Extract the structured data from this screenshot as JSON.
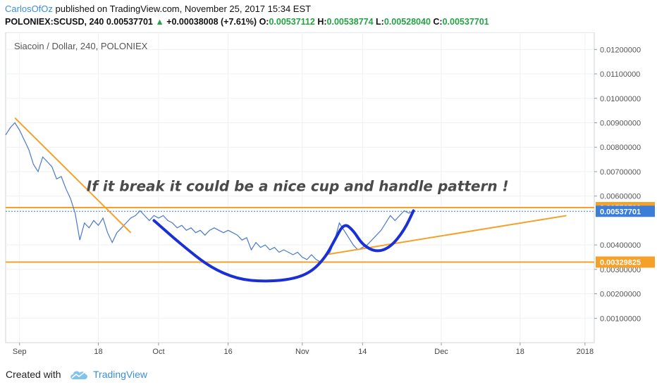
{
  "header": {
    "author": "CarlosOfOz",
    "published_text": "published on TradingView.com, November 25, 2017 15:34 EST",
    "symbol": "POLONIEX:SCUSD, 240",
    "last_price": "0.00537701",
    "change_arrow": "▲",
    "change": "+0.00038008 (+7.61%)",
    "o_label": "O:",
    "o_value": "0.00537112",
    "h_label": "H:",
    "h_value": "0.00538774",
    "l_label": "L:",
    "l_value": "0.00528040",
    "c_label": "C:",
    "c_value": "0.00537701"
  },
  "footer": {
    "created_with": "Created with",
    "brand": "TradingView"
  },
  "colors": {
    "price_line": "#4a78c9",
    "trend_orange": "#f5a129",
    "cup_blue": "#1a2fd6",
    "last_price_box": "#3b7dd8",
    "annotation_text": "#4a4a4a",
    "grid": "#eef0f3"
  },
  "chart_data": {
    "type": "line",
    "title": "Siacoin / Dollar, 240, POLONIEX",
    "ylim": [
      0.0,
      0.0127
    ],
    "xlim": [
      "2017-08-29",
      "2018-01-03"
    ],
    "y_ticks": [
      "0.01200000",
      "0.01100000",
      "0.01000000",
      "0.00900000",
      "0.00800000",
      "0.00700000",
      "0.00600000",
      "0.00400000",
      "0.00300000",
      "0.00200000",
      "0.00100000"
    ],
    "x_ticks": [
      {
        "date": "2017-09-01",
        "label": "Sep"
      },
      {
        "date": "2017-09-18",
        "label": "18"
      },
      {
        "date": "2017-10-01",
        "label": "Oct"
      },
      {
        "date": "2017-10-16",
        "label": "16"
      },
      {
        "date": "2017-11-01",
        "label": "Nov"
      },
      {
        "date": "2017-11-14",
        "label": "14"
      },
      {
        "date": "2017-12-01",
        "label": "Dec"
      },
      {
        "date": "2017-12-18",
        "label": "18"
      },
      {
        "date": "2018-01-01",
        "label": "2018"
      }
    ],
    "series": [
      {
        "values": [
          [
            "2017-08-29",
            0.0085
          ],
          [
            "2017-08-30",
            0.0088
          ],
          [
            "2017-08-31",
            0.009
          ],
          [
            "2017-09-01",
            0.0087
          ],
          [
            "2017-09-02",
            0.0083
          ],
          [
            "2017-09-03",
            0.0079
          ],
          [
            "2017-09-04",
            0.0073
          ],
          [
            "2017-09-05",
            0.007
          ],
          [
            "2017-09-06",
            0.0076
          ],
          [
            "2017-09-07",
            0.0074
          ],
          [
            "2017-09-08",
            0.0072
          ],
          [
            "2017-09-09",
            0.0067
          ],
          [
            "2017-09-10",
            0.0068
          ],
          [
            "2017-09-11",
            0.0063
          ],
          [
            "2017-09-12",
            0.0059
          ],
          [
            "2017-09-13",
            0.0053
          ],
          [
            "2017-09-14",
            0.0042
          ],
          [
            "2017-09-15",
            0.0049
          ],
          [
            "2017-09-16",
            0.0047
          ],
          [
            "2017-09-17",
            0.005
          ],
          [
            "2017-09-18",
            0.0048
          ],
          [
            "2017-09-19",
            0.0051
          ],
          [
            "2017-09-20",
            0.0045
          ],
          [
            "2017-09-21",
            0.0041
          ],
          [
            "2017-09-22",
            0.0045
          ],
          [
            "2017-09-23",
            0.0047
          ],
          [
            "2017-09-24",
            0.0049
          ],
          [
            "2017-09-25",
            0.0051
          ],
          [
            "2017-09-26",
            0.0052
          ],
          [
            "2017-09-27",
            0.0054
          ],
          [
            "2017-09-28",
            0.0052
          ],
          [
            "2017-09-29",
            0.005
          ],
          [
            "2017-09-30",
            0.0052
          ],
          [
            "2017-10-01",
            0.0051
          ],
          [
            "2017-10-02",
            0.0052
          ],
          [
            "2017-10-03",
            0.005
          ],
          [
            "2017-10-04",
            0.0049
          ],
          [
            "2017-10-05",
            0.0047
          ],
          [
            "2017-10-06",
            0.0048
          ],
          [
            "2017-10-07",
            0.0046
          ],
          [
            "2017-10-08",
            0.0047
          ],
          [
            "2017-10-09",
            0.0045
          ],
          [
            "2017-10-10",
            0.0046
          ],
          [
            "2017-10-11",
            0.0044
          ],
          [
            "2017-10-12",
            0.0046
          ],
          [
            "2017-10-13",
            0.0047
          ],
          [
            "2017-10-14",
            0.0046
          ],
          [
            "2017-10-15",
            0.0045
          ],
          [
            "2017-10-16",
            0.0046
          ],
          [
            "2017-10-17",
            0.0045
          ],
          [
            "2017-10-18",
            0.0044
          ],
          [
            "2017-10-19",
            0.0042
          ],
          [
            "2017-10-20",
            0.0043
          ],
          [
            "2017-10-21",
            0.0038
          ],
          [
            "2017-10-22",
            0.0041
          ],
          [
            "2017-10-23",
            0.0039
          ],
          [
            "2017-10-24",
            0.004
          ],
          [
            "2017-10-25",
            0.0038
          ],
          [
            "2017-10-26",
            0.0039
          ],
          [
            "2017-10-27",
            0.0037
          ],
          [
            "2017-10-28",
            0.0038
          ],
          [
            "2017-10-29",
            0.0037
          ],
          [
            "2017-10-30",
            0.0036
          ],
          [
            "2017-10-31",
            0.0037
          ],
          [
            "2017-11-01",
            0.0035
          ],
          [
            "2017-11-02",
            0.0034
          ],
          [
            "2017-11-03",
            0.0036
          ],
          [
            "2017-11-04",
            0.0034
          ],
          [
            "2017-11-05",
            0.0033
          ],
          [
            "2017-11-06",
            0.0035
          ],
          [
            "2017-11-07",
            0.0037
          ],
          [
            "2017-11-08",
            0.0042
          ],
          [
            "2017-11-09",
            0.0049
          ],
          [
            "2017-11-10",
            0.0046
          ],
          [
            "2017-11-11",
            0.0043
          ],
          [
            "2017-11-12",
            0.004
          ],
          [
            "2017-11-13",
            0.0038
          ],
          [
            "2017-11-14",
            0.0039
          ],
          [
            "2017-11-15",
            0.004
          ],
          [
            "2017-11-16",
            0.0042
          ],
          [
            "2017-11-17",
            0.0044
          ],
          [
            "2017-11-18",
            0.0046
          ],
          [
            "2017-11-19",
            0.0049
          ],
          [
            "2017-11-20",
            0.0052
          ],
          [
            "2017-11-21",
            0.005
          ],
          [
            "2017-11-22",
            0.0052
          ],
          [
            "2017-11-23",
            0.0054
          ],
          [
            "2017-11-24",
            0.0053
          ],
          [
            "2017-11-25",
            0.0054
          ]
        ]
      }
    ],
    "horizontal_levels": [
      {
        "value": 0.00552783,
        "label": "0.00552783",
        "color": "#f5a129"
      },
      {
        "value": 0.00537701,
        "label": "0.00537701",
        "color": "#3b7dd8",
        "style": "dotted"
      },
      {
        "value": 0.00329825,
        "label": "0.00329825",
        "color": "#f5a129"
      }
    ],
    "trendlines": [
      {
        "color": "#f5a129",
        "points": [
          [
            "2017-08-31",
            0.0092
          ],
          [
            "2017-09-25",
            0.0045
          ]
        ]
      },
      {
        "color": "#f5a129",
        "points": [
          [
            "2017-11-06",
            0.0036
          ],
          [
            "2017-12-28",
            0.0052
          ]
        ]
      }
    ],
    "drawings": [
      {
        "type": "cup-curve",
        "color": "#1a2fd6",
        "points": [
          [
            "2017-09-30",
            0.005
          ],
          [
            "2017-10-06",
            0.004
          ],
          [
            "2017-10-12",
            0.0031
          ],
          [
            "2017-10-18",
            0.0026
          ],
          [
            "2017-10-24",
            0.0025
          ],
          [
            "2017-10-30",
            0.0026
          ],
          [
            "2017-11-03",
            0.0029
          ],
          [
            "2017-11-06",
            0.0035
          ],
          [
            "2017-11-08",
            0.0042
          ],
          [
            "2017-11-10",
            0.0049
          ],
          [
            "2017-11-12",
            0.0046
          ],
          [
            "2017-11-14",
            0.004
          ],
          [
            "2017-11-17",
            0.0037
          ],
          [
            "2017-11-20",
            0.0039
          ],
          [
            "2017-11-23",
            0.0046
          ],
          [
            "2017-11-25",
            0.0054
          ]
        ]
      }
    ],
    "annotations": [
      {
        "text": "If it break it could be a nice cup and handle pattern !",
        "x": "2017-10-31",
        "y": 0.0062
      }
    ]
  }
}
